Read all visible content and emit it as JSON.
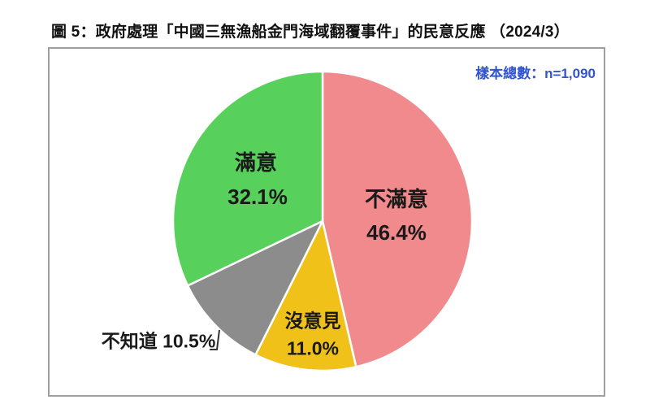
{
  "figure": {
    "title": "圖 5：政府處理「中國三無漁船金門海域翻覆事件」的民意反應 （2024/3）",
    "sample_note": "樣本總數：n=1,090"
  },
  "colors": {
    "dissatisfied": "#f08a8c",
    "no_opinion": "#f0c119",
    "dont_know": "#8c8c8c",
    "satisfied": "#57d15c",
    "sample_note_text": "#3055cc",
    "label_text": "#1a1a1a",
    "box_border": "#9e9e9e",
    "slice_separator": "#ffffff",
    "leader_line": "#333333"
  },
  "chart_data": {
    "type": "pie",
    "title": "政府處理「中國三無漁船金門海域翻覆事件」的民意反應 （2024/3）",
    "sample_note": "樣本總數：n=1,090",
    "sample_size": 1090,
    "start_angle_deg": 0,
    "direction": "clockwise",
    "legend_position": "labels-on-slices",
    "slices": [
      {
        "label": "不滿意",
        "value": 46.4,
        "display": "46.4%",
        "color": "#f08a8c"
      },
      {
        "label": "沒意見",
        "value": 11.0,
        "display": "11.0%",
        "color": "#f0c119"
      },
      {
        "label": "不知道",
        "value": 10.5,
        "display": "10.5%",
        "color": "#8c8c8c"
      },
      {
        "label": "滿意",
        "value": 32.1,
        "display": "32.1%",
        "color": "#57d15c"
      }
    ]
  }
}
